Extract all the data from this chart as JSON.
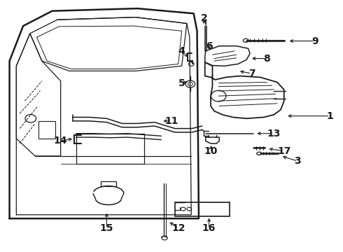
{
  "bg_color": "#ffffff",
  "line_color": "#1a1a1a",
  "fig_width": 4.9,
  "fig_height": 3.6,
  "dpi": 100,
  "label_fontsize": 10,
  "label_fontweight": "bold",
  "label_positions": {
    "1": {
      "lp": [
        0.965,
        0.54
      ],
      "tp": [
        0.835,
        0.54
      ]
    },
    "2": {
      "lp": [
        0.595,
        0.93
      ],
      "tp": [
        0.595,
        0.9
      ]
    },
    "3": {
      "lp": [
        0.87,
        0.36
      ],
      "tp": [
        0.82,
        0.38
      ]
    },
    "4": {
      "lp": [
        0.53,
        0.8
      ],
      "tp": [
        0.553,
        0.77
      ]
    },
    "5": {
      "lp": [
        0.53,
        0.67
      ],
      "tp": [
        0.553,
        0.68
      ]
    },
    "6": {
      "lp": [
        0.61,
        0.82
      ],
      "tp": [
        0.61,
        0.8
      ]
    },
    "7": {
      "lp": [
        0.735,
        0.71
      ],
      "tp": [
        0.695,
        0.72
      ]
    },
    "8": {
      "lp": [
        0.78,
        0.77
      ],
      "tp": [
        0.73,
        0.77
      ]
    },
    "9": {
      "lp": [
        0.92,
        0.84
      ],
      "tp": [
        0.84,
        0.84
      ]
    },
    "10": {
      "lp": [
        0.615,
        0.4
      ],
      "tp": [
        0.617,
        0.43
      ]
    },
    "11": {
      "lp": [
        0.5,
        0.52
      ],
      "tp": [
        0.47,
        0.52
      ]
    },
    "12": {
      "lp": [
        0.52,
        0.09
      ],
      "tp": [
        0.49,
        0.12
      ]
    },
    "13": {
      "lp": [
        0.8,
        0.47
      ],
      "tp": [
        0.745,
        0.47
      ]
    },
    "14": {
      "lp": [
        0.175,
        0.44
      ],
      "tp": [
        0.215,
        0.45
      ]
    },
    "15": {
      "lp": [
        0.31,
        0.09
      ],
      "tp": [
        0.31,
        0.16
      ]
    },
    "16": {
      "lp": [
        0.61,
        0.09
      ],
      "tp": [
        0.61,
        0.14
      ]
    },
    "17": {
      "lp": [
        0.83,
        0.4
      ],
      "tp": [
        0.78,
        0.41
      ]
    }
  }
}
